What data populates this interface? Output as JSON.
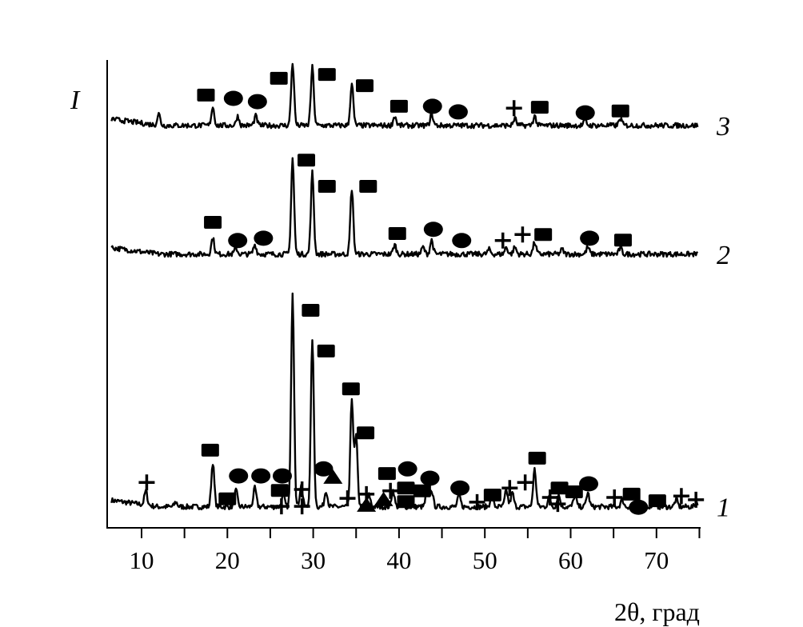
{
  "chart_data": {
    "type": "line",
    "title": "",
    "xlabel": "2θ, град",
    "ylabel": "I",
    "xlim": [
      6,
      75
    ],
    "ylim": [
      0,
      100
    ],
    "xticks": [
      10,
      20,
      30,
      40,
      50,
      60,
      70
    ],
    "xminor_ticks": [
      15,
      25,
      35,
      45,
      55,
      65,
      75
    ],
    "grid": false,
    "legend": "none",
    "series": [
      {
        "name": "1",
        "baseline": 4.5,
        "peaks": [
          [
            10.5,
            7.5
          ],
          [
            14,
            5.5
          ],
          [
            18.3,
            14
          ],
          [
            21,
            8
          ],
          [
            23.2,
            8.5
          ],
          [
            26.5,
            7
          ],
          [
            27.6,
            50.5
          ],
          [
            28.6,
            9
          ],
          [
            29.9,
            40.5
          ],
          [
            31.5,
            8
          ],
          [
            34.5,
            27.5
          ],
          [
            35,
            19.5
          ],
          [
            36.5,
            7
          ],
          [
            39.3,
            8
          ],
          [
            43.3,
            9
          ],
          [
            43.8,
            8
          ],
          [
            47,
            7
          ],
          [
            50.8,
            7
          ],
          [
            52.5,
            8
          ],
          [
            53.2,
            7.5
          ],
          [
            55.8,
            12.5
          ],
          [
            57.5,
            6.5
          ],
          [
            58.6,
            7
          ],
          [
            60.5,
            7
          ],
          [
            62,
            7.5
          ],
          [
            66,
            6
          ],
          [
            69.8,
            5.5
          ],
          [
            72.3,
            6
          ],
          [
            74.7,
            5.5
          ]
        ],
        "markers": [
          [
            "plus",
            10.6,
            9.7
          ],
          [
            "square",
            18.0,
            16.6
          ],
          [
            "square",
            20.0,
            6.2
          ],
          [
            "circle",
            21.3,
            11.1
          ],
          [
            "circle",
            23.9,
            11.1
          ],
          [
            "circle",
            26.4,
            11.1
          ],
          [
            "square",
            26.1,
            8.0
          ],
          [
            "plus",
            26.3,
            4.6
          ],
          [
            "plus",
            28.7,
            8.2
          ],
          [
            "plus",
            28.7,
            4.6
          ],
          [
            "square",
            29.7,
            46.5
          ],
          [
            "circle",
            31.2,
            12.6
          ],
          [
            "triangle",
            32.3,
            10.8
          ],
          [
            "square",
            31.5,
            37.8
          ],
          [
            "square",
            34.4,
            29.7
          ],
          [
            "square",
            36.1,
            20.3
          ],
          [
            "plus",
            34.0,
            6.3
          ],
          [
            "plus",
            36.2,
            7.2
          ],
          [
            "triangle",
            36.2,
            4.8
          ],
          [
            "triangle",
            38.2,
            6.0
          ],
          [
            "plus",
            39.0,
            7.9
          ],
          [
            "square",
            38.6,
            11.6
          ],
          [
            "circle",
            41.0,
            12.6
          ],
          [
            "square",
            40.8,
            8.5
          ],
          [
            "square",
            40.8,
            5.6
          ],
          [
            "square",
            42.7,
            7.9
          ],
          [
            "circle",
            43.6,
            10.6
          ],
          [
            "circle",
            47.1,
            8.5
          ],
          [
            "plus",
            49.1,
            5.5
          ],
          [
            "square",
            50.9,
            7.0
          ],
          [
            "plus",
            52.9,
            8.5
          ],
          [
            "plus",
            54.7,
            9.7
          ],
          [
            "square",
            56.1,
            14.9
          ],
          [
            "square",
            58.7,
            8.5
          ],
          [
            "plus",
            57.6,
            6.5
          ],
          [
            "plus",
            58.5,
            5.1
          ],
          [
            "square",
            60.4,
            7.7
          ],
          [
            "circle",
            62.1,
            9.4
          ],
          [
            "plus",
            65.1,
            6.5
          ],
          [
            "square",
            67.1,
            7.2
          ],
          [
            "circle",
            67.9,
            4.4
          ],
          [
            "square",
            70.1,
            5.8
          ],
          [
            "plus",
            72.9,
            6.8
          ],
          [
            "plus",
            74.6,
            6.0
          ]
        ]
      },
      {
        "name": "2",
        "baseline": 58.5,
        "peaks": [
          [
            18.3,
            62
          ],
          [
            21,
            59.8
          ],
          [
            23.2,
            60.5
          ],
          [
            27.6,
            79
          ],
          [
            29.9,
            76
          ],
          [
            34.5,
            72.5
          ],
          [
            39.5,
            60.5
          ],
          [
            42.8,
            60
          ],
          [
            43.8,
            61.5
          ],
          [
            50.5,
            59.5
          ],
          [
            52.5,
            60
          ],
          [
            53.5,
            60
          ],
          [
            55.8,
            61
          ],
          [
            59,
            59.5
          ],
          [
            62,
            60
          ],
          [
            65.8,
            59.8
          ]
        ],
        "markers": [
          [
            "square",
            18.3,
            65.3
          ],
          [
            "circle",
            21.2,
            61.4
          ],
          [
            "circle",
            24.2,
            61.9
          ],
          [
            "square",
            29.2,
            78.6
          ],
          [
            "square",
            31.6,
            73.0
          ],
          [
            "square",
            36.4,
            73.0
          ],
          [
            "square",
            39.8,
            62.9
          ],
          [
            "circle",
            44.0,
            63.8
          ],
          [
            "circle",
            47.3,
            61.4
          ],
          [
            "plus",
            52.1,
            61.4
          ],
          [
            "plus",
            54.4,
            62.7
          ],
          [
            "square",
            56.8,
            62.7
          ],
          [
            "circle",
            62.2,
            61.9
          ],
          [
            "square",
            66.1,
            61.5
          ]
        ]
      },
      {
        "name": "3",
        "baseline": 86,
        "peaks": [
          [
            12,
            88.5
          ],
          [
            18.3,
            90
          ],
          [
            21.2,
            88
          ],
          [
            23.3,
            88
          ],
          [
            27.6,
            99.5
          ],
          [
            29.9,
            98.5
          ],
          [
            34.5,
            95
          ],
          [
            39.5,
            88
          ],
          [
            43.8,
            88.5
          ],
          [
            53.5,
            87.5
          ],
          [
            55.8,
            88
          ],
          [
            61.7,
            87
          ],
          [
            65.8,
            87.5
          ]
        ],
        "markers": [
          [
            "square",
            17.5,
            92.5
          ],
          [
            "circle",
            20.7,
            91.8
          ],
          [
            "circle",
            23.5,
            91.1
          ],
          [
            "square",
            26.0,
            96.1
          ],
          [
            "square",
            31.6,
            96.9
          ],
          [
            "square",
            36.0,
            94.5
          ],
          [
            "square",
            40.0,
            90.1
          ],
          [
            "circle",
            43.9,
            90.1
          ],
          [
            "circle",
            46.9,
            88.9
          ],
          [
            "plus",
            53.4,
            89.7
          ],
          [
            "square",
            56.4,
            89.9
          ],
          [
            "circle",
            61.7,
            88.7
          ],
          [
            "square",
            65.8,
            89.1
          ]
        ]
      }
    ]
  }
}
